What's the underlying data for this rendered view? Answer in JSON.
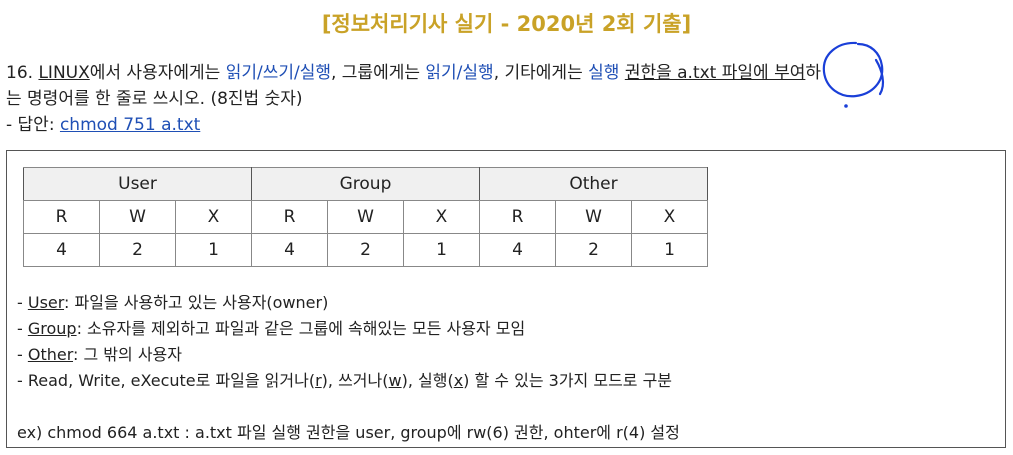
{
  "title": "[정보처리기사 실기 - 2020년 2회 기출]",
  "question": {
    "number": "16.",
    "linux": "LINUX",
    "p1": "에서 사용자에게는 ",
    "user_perm": "읽기/쓰기/실행",
    "p2": ", 그룹에게는 ",
    "group_perm": "읽기/실행",
    "p3": ", 기타에게는 ",
    "other_perm": "실행",
    "p4": " ",
    "underlined": "권한을 a.txt 파일에 부여",
    "p5": "하",
    "line2": "는 명령어를 한 줄로 쓰시오. (8진법 숫자)",
    "answer_prefix": "- 답안: ",
    "answer": "chmod 751 a.txt"
  },
  "table": {
    "groups": [
      "User",
      "Group",
      "Other"
    ],
    "letters": [
      "R",
      "W",
      "X",
      "R",
      "W",
      "X",
      "R",
      "W",
      "X"
    ],
    "values": [
      "4",
      "2",
      "1",
      "4",
      "2",
      "1",
      "4",
      "2",
      "1"
    ]
  },
  "notes": {
    "user_dash": "- ",
    "user_term": "User",
    "user_desc": ": 파일을 사용하고 있는 사용자(owner)",
    "group_dash": "- ",
    "group_term": "Group",
    "group_desc": ": 소유자를 제외하고 파일과 같은 그룹에 속해있는 모든 사용자 모임",
    "other_dash": "- ",
    "other_term": "Other",
    "other_desc": ": 그 밖의 사용자",
    "rwx_a": "- Read, Write, eXecute로 파일을 읽거나(",
    "rwx_r": "r",
    "rwx_b": "), 쓰거나(",
    "rwx_w": "w",
    "rwx_c": "), 실행(",
    "rwx_x": "x",
    "rwx_d": ") 할 수 있는 3가지 모드로 구분",
    "example": "ex) chmod 664 a.txt : a.txt 파일 실행 권한을 user, group에 rw(6) 권한, ohter에 r(4) 설정"
  },
  "colors": {
    "title": "#c9a227",
    "blue": "#1f4fb5",
    "pen": "#1a3fd8"
  }
}
